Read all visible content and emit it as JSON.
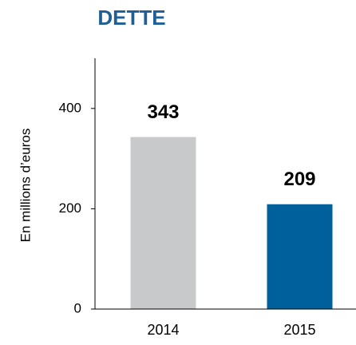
{
  "chart_data": {
    "type": "bar",
    "title": "DETTE",
    "y_label": "En millions d’euros",
    "categories": [
      "2014",
      "2015"
    ],
    "values": [
      343,
      209
    ],
    "colors": [
      "#c8c9cb",
      "#00609c"
    ],
    "ylim": [
      0,
      500
    ],
    "yticks": [
      0,
      200,
      400
    ],
    "grid": false
  }
}
